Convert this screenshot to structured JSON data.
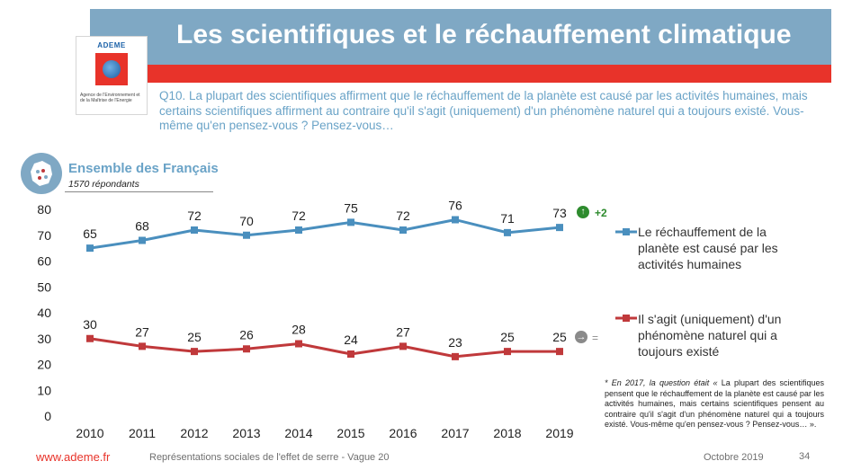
{
  "header": {
    "title": "Les scientifiques et le réchauffement climatique"
  },
  "logo": {
    "name": "ADEME",
    "caption": "Agence de l'Environnement et de la Maîtrise de l'Energie"
  },
  "question": "Q10. La plupart des scientifiques affirment que le réchauffement de la planète est causé par les activités humaines, mais certains scientifiques affirment au contraire qu'il s'agit (uniquement) d'un phénomène naturel qui a toujours existé. Vous-même qu'en pensez-vous ? Pensez-vous…",
  "group": {
    "title": "Ensemble des Français",
    "respondents": "1570 répondants"
  },
  "evolution": {
    "series1": "+2",
    "series2": "="
  },
  "footnote": {
    "lead": "* En 2017, la question était «",
    "text": "La plupart des scientifiques pensent que le réchauffement de la planète est causé par les activités humaines, mais certains scientifiques pensent au contraire qu'il s'agit d'un phénomène naturel qui a toujours existé. Vous-même qu'en pensez-vous ? Pensez-vous… »."
  },
  "footer": {
    "url": "www.ademe.fr",
    "title": "Représentations sociales de l'effet de serre - Vague 20",
    "date": "Octobre 2019",
    "page": "34"
  },
  "colors": {
    "series1": "#4a8fbe",
    "series2": "#c0393b",
    "header": "#7fa8c4",
    "accent": "#e8332a"
  },
  "chart_data": {
    "type": "line",
    "x": [
      "2010",
      "2011",
      "2012",
      "2013",
      "2014",
      "2015",
      "2016",
      "2017",
      "2018",
      "2019"
    ],
    "ylim": [
      0,
      80
    ],
    "yticks": [
      0,
      10,
      20,
      30,
      40,
      50,
      60,
      70,
      80
    ],
    "grid": false,
    "legend_position": "right",
    "series": [
      {
        "name": "Le réchauffement de la planète est causé par les activités humaines",
        "values": [
          65,
          68,
          72,
          70,
          72,
          75,
          72,
          76,
          71,
          73
        ],
        "color": "#4a8fbe"
      },
      {
        "name": "Il s'agit (uniquement) d'un phénomène naturel qui a toujours existé",
        "values": [
          30,
          27,
          25,
          26,
          28,
          24,
          27,
          23,
          25,
          25
        ],
        "color": "#c0393b"
      }
    ]
  }
}
